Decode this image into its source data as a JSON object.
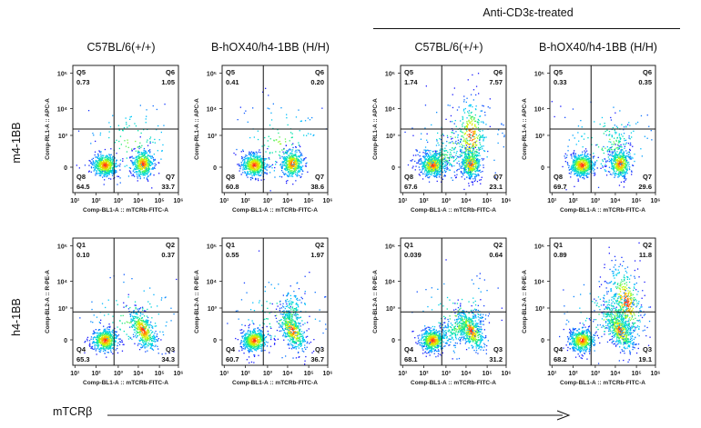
{
  "header": {
    "group_label": "Anti-CD3ε-treated"
  },
  "columns": [
    "C57BL/6(+/+)",
    "B-hOX40/h4-1BB  (H/H)",
    "C57BL/6(+/+)",
    "B-hOX40/h4-1BB  (H/H)"
  ],
  "rows": [
    "m4-1BB",
    "h4-1BB"
  ],
  "footer": {
    "x_label": "mTCRβ"
  },
  "colors": {
    "density_low": "#1a1aff",
    "density_mid": "#00e5a0",
    "density_high": "#ff2020"
  },
  "chart_data": [
    {
      "type": "scatter",
      "row": 0,
      "col": 0,
      "xlabel": "Comp-BL1-A :: mTCRb-FITC-A",
      "ylabel": "Comp-RL1-A :: APC-A",
      "x_ticks": [
        "10¹",
        "10²",
        "10³",
        "10⁴",
        "10⁵",
        "10⁶"
      ],
      "y_ticks": [
        "0",
        "10³",
        "10⁴",
        "10⁵"
      ],
      "quadrants": [
        {
          "name": "Q5",
          "value": "0.73"
        },
        {
          "name": "Q6",
          "value": "1.05"
        },
        {
          "name": "Q8",
          "value": "64.5"
        },
        {
          "name": "Q7",
          "value": "33.7"
        }
      ]
    },
    {
      "type": "scatter",
      "row": 0,
      "col": 1,
      "xlabel": "Comp-BL1-A :: mTCRb-FITC-A",
      "ylabel": "Comp-RL1-A :: APC-A",
      "x_ticks": [
        "10¹",
        "10²",
        "10³",
        "10⁴",
        "10⁵",
        "10⁶"
      ],
      "y_ticks": [
        "0",
        "10³",
        "10⁴",
        "10⁵"
      ],
      "quadrants": [
        {
          "name": "Q5",
          "value": "0.41"
        },
        {
          "name": "Q6",
          "value": "0.20"
        },
        {
          "name": "Q8",
          "value": "60.8"
        },
        {
          "name": "Q7",
          "value": "38.6"
        }
      ]
    },
    {
      "type": "scatter",
      "row": 0,
      "col": 2,
      "xlabel": "Comp-BL1-A :: mTCRb-FITC-A",
      "ylabel": "Comp-RL1-A :: APC-A",
      "x_ticks": [
        "10¹",
        "10²",
        "10³",
        "10⁴",
        "10⁵",
        "10⁶"
      ],
      "y_ticks": [
        "0",
        "10³",
        "10⁴",
        "10⁵"
      ],
      "quadrants": [
        {
          "name": "Q5",
          "value": "1.74"
        },
        {
          "name": "Q6",
          "value": "7.57"
        },
        {
          "name": "Q8",
          "value": "67.6"
        },
        {
          "name": "Q7",
          "value": "23.1"
        }
      ]
    },
    {
      "type": "scatter",
      "row": 0,
      "col": 3,
      "xlabel": "Comp-BL1-A :: mTCRb-FITC-A",
      "ylabel": "Comp-RL1-A :: APC-A",
      "x_ticks": [
        "10¹",
        "10²",
        "10³",
        "10⁴",
        "10⁵",
        "10⁶"
      ],
      "y_ticks": [
        "0",
        "10³",
        "10⁴",
        "10⁵"
      ],
      "quadrants": [
        {
          "name": "Q5",
          "value": "0.33"
        },
        {
          "name": "Q6",
          "value": "0.35"
        },
        {
          "name": "Q8",
          "value": "69.7"
        },
        {
          "name": "Q7",
          "value": "29.6"
        }
      ]
    },
    {
      "type": "scatter",
      "row": 1,
      "col": 0,
      "xlabel": "Comp-BL1-A :: mTCRb-FITC-A",
      "ylabel": "Comp-BL2-A :: R-PE-A",
      "x_ticks": [
        "10¹",
        "10²",
        "10³",
        "10⁴",
        "10⁵",
        "10⁶"
      ],
      "y_ticks": [
        "0",
        "10³",
        "10⁴",
        "10⁵"
      ],
      "quadrants": [
        {
          "name": "Q1",
          "value": "0.10"
        },
        {
          "name": "Q2",
          "value": "0.37"
        },
        {
          "name": "Q4",
          "value": "65.3"
        },
        {
          "name": "Q3",
          "value": "34.3"
        }
      ]
    },
    {
      "type": "scatter",
      "row": 1,
      "col": 1,
      "xlabel": "Comp-BL1-A :: mTCRb-FITC-A",
      "ylabel": "Comp-BL2-A :: R-PE-A",
      "x_ticks": [
        "10¹",
        "10²",
        "10³",
        "10⁴",
        "10⁵",
        "10⁶"
      ],
      "y_ticks": [
        "0",
        "10³",
        "10⁴",
        "10⁵"
      ],
      "quadrants": [
        {
          "name": "Q1",
          "value": "0.55"
        },
        {
          "name": "Q2",
          "value": "1.97"
        },
        {
          "name": "Q4",
          "value": "60.7"
        },
        {
          "name": "Q3",
          "value": "36.7"
        }
      ]
    },
    {
      "type": "scatter",
      "row": 1,
      "col": 2,
      "xlabel": "Comp-BL1-A :: mTCRb-FITC-A",
      "ylabel": "Comp-BL2-A :: R-PE-A",
      "x_ticks": [
        "10¹",
        "10²",
        "10³",
        "10⁴",
        "10⁵",
        "10⁶"
      ],
      "y_ticks": [
        "0",
        "10³",
        "10⁴",
        "10⁵"
      ],
      "quadrants": [
        {
          "name": "Q1",
          "value": "0.039"
        },
        {
          "name": "Q2",
          "value": "0.64"
        },
        {
          "name": "Q4",
          "value": "68.1"
        },
        {
          "name": "Q3",
          "value": "31.2"
        }
      ]
    },
    {
      "type": "scatter",
      "row": 1,
      "col": 3,
      "xlabel": "Comp-BL1-A :: mTCRb-FITC-A",
      "ylabel": "Comp-BL2-A :: R-PE-A",
      "x_ticks": [
        "10¹",
        "10²",
        "10³",
        "10⁴",
        "10⁵",
        "10⁶"
      ],
      "y_ticks": [
        "0",
        "10³",
        "10⁴",
        "10⁵"
      ],
      "quadrants": [
        {
          "name": "Q1",
          "value": "0.89"
        },
        {
          "name": "Q2",
          "value": "11.8"
        },
        {
          "name": "Q4",
          "value": "68.2"
        },
        {
          "name": "Q3",
          "value": "19.1"
        }
      ]
    }
  ]
}
